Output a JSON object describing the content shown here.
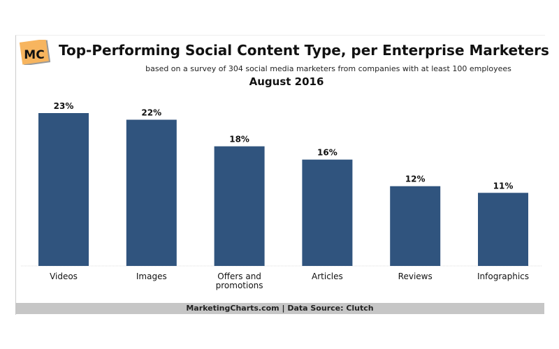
{
  "logo_text": "MC",
  "title": "Top-Performing Social Content Type, per Enterprise Marketers",
  "subtitle": "based on a survey of 304 social media marketers from companies with at least 100 employees",
  "date": "August 2016",
  "footer": "MarketingCharts.com | Data Source: Clutch",
  "colors": {
    "bar": "#30547e",
    "logo": "#f7b55f",
    "footer": "#c6c6c6"
  },
  "chart_data": {
    "type": "bar",
    "title": "Top-Performing Social Content Type, per Enterprise Marketers",
    "categories": [
      "Videos",
      "Images",
      "Offers and promotions",
      "Articles",
      "Reviews",
      "Infographics"
    ],
    "category_lines": [
      [
        "Videos"
      ],
      [
        "Images"
      ],
      [
        "Offers and",
        "promotions"
      ],
      [
        "Articles"
      ],
      [
        "Reviews"
      ],
      [
        "Infographics"
      ]
    ],
    "values": [
      23,
      22,
      18,
      16,
      12,
      11
    ],
    "data_labels": [
      "23%",
      "22%",
      "18%",
      "16%",
      "12%",
      "11%"
    ],
    "unit": "%",
    "ylim": [
      0,
      25
    ],
    "grid": false,
    "legend": "none"
  }
}
